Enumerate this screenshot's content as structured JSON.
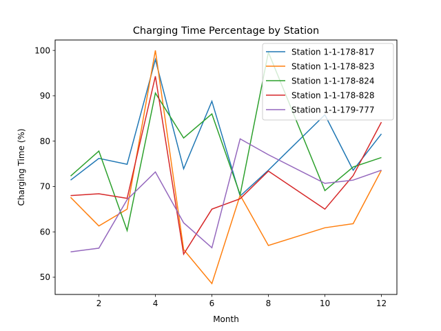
{
  "chart_data": {
    "type": "line",
    "title": "Charging Time Percentage by Station",
    "xlabel": "Month",
    "ylabel": "Charging Time (%)",
    "xlim": [
      0.45,
      12.55
    ],
    "ylim": [
      46.2,
      102.3
    ],
    "x_ticks": [
      2,
      4,
      6,
      8,
      10,
      12
    ],
    "y_ticks": [
      50,
      60,
      70,
      80,
      90,
      100
    ],
    "grid": false,
    "legend_position": "top-right",
    "series": [
      {
        "name": "Station 1-1-178-817",
        "color": "#1f77b4",
        "x": [
          1,
          2,
          3,
          4,
          5,
          6,
          7,
          8,
          10,
          11,
          12
        ],
        "values": [
          71.4,
          76.2,
          74.9,
          98.0,
          73.9,
          88.8,
          67.9,
          73.6,
          85.8,
          73.6,
          81.6
        ]
      },
      {
        "name": "Station 1-1-178-823",
        "color": "#ff7f0e",
        "x": [
          1,
          2,
          3,
          4,
          5,
          6,
          7,
          8,
          10,
          11,
          12
        ],
        "values": [
          67.6,
          61.3,
          65.0,
          100.0,
          56.1,
          48.6,
          68.1,
          57.0,
          60.9,
          61.8,
          73.6
        ]
      },
      {
        "name": "Station 1-1-178-824",
        "color": "#2ca02c",
        "x": [
          1,
          2,
          3,
          4,
          5,
          6,
          7,
          8,
          10,
          11,
          12
        ],
        "values": [
          72.3,
          77.8,
          60.3,
          90.6,
          80.7,
          86.0,
          68.2,
          99.6,
          69.1,
          74.3,
          76.4
        ]
      },
      {
        "name": "Station 1-1-178-828",
        "color": "#d62728",
        "x": [
          1,
          2,
          3,
          4,
          5,
          6,
          7,
          8,
          10,
          11,
          12
        ],
        "values": [
          68.0,
          68.4,
          67.4,
          94.3,
          55.1,
          65.0,
          67.3,
          73.4,
          65.0,
          72.4,
          84.2
        ]
      },
      {
        "name": "Station 1-1-179-777",
        "color": "#9467bd",
        "x": [
          1,
          2,
          3,
          4,
          5,
          6,
          7,
          8,
          10,
          11,
          12
        ],
        "values": [
          55.6,
          56.4,
          67.1,
          73.2,
          62.0,
          56.5,
          80.5,
          77.0,
          70.7,
          71.4,
          73.6
        ]
      }
    ]
  }
}
